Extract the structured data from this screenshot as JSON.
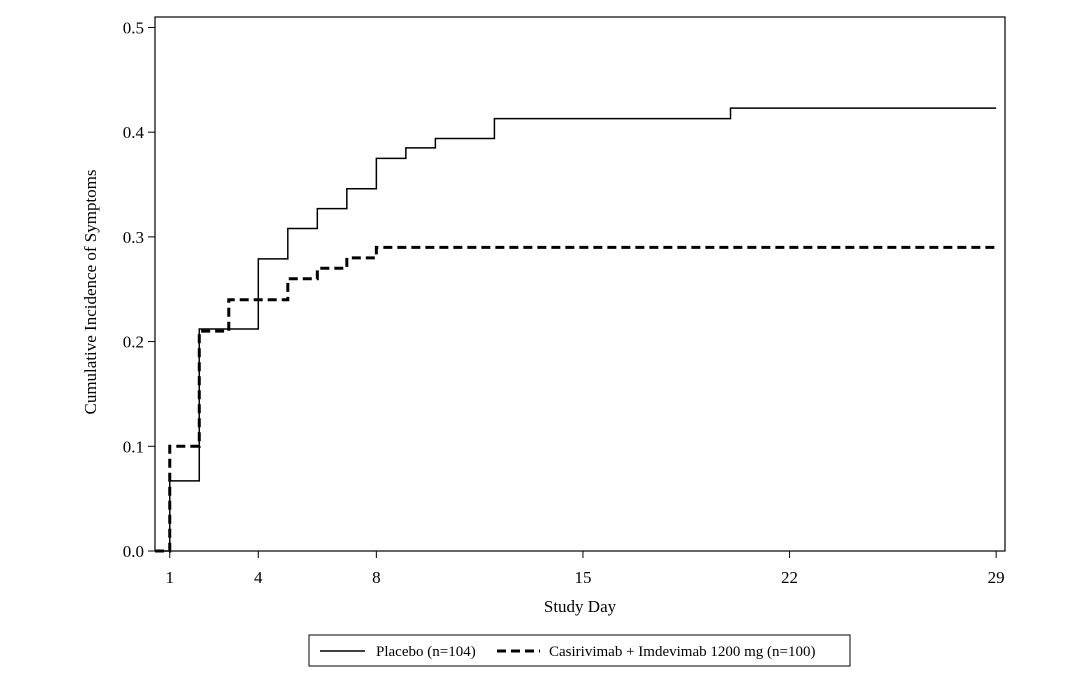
{
  "chart_data": {
    "type": "line",
    "chart_style": "step",
    "xlabel": "Study Day",
    "ylabel": "Cumulative Incidence of Symptoms",
    "xlim": [
      0.5,
      29.3
    ],
    "ylim": [
      0,
      0.51
    ],
    "x_ticks": [
      1,
      4,
      8,
      15,
      22,
      29
    ],
    "x_tick_labels": [
      "1",
      "4",
      "8",
      "15",
      "22",
      "29"
    ],
    "y_ticks": [
      0.0,
      0.1,
      0.2,
      0.3,
      0.4,
      0.5
    ],
    "y_tick_labels": [
      "0.0",
      "0.1",
      "0.2",
      "0.3",
      "0.4",
      "0.5"
    ],
    "grid": false,
    "legend_position": "bottom",
    "series": [
      {
        "name": "Placebo (n=104)",
        "line_style": "solid",
        "color": "#000000",
        "x": [
          0.5,
          1,
          2,
          4,
          5,
          6,
          7,
          8,
          9,
          10,
          12,
          20,
          29
        ],
        "y": [
          0,
          0.067,
          0.212,
          0.279,
          0.308,
          0.327,
          0.346,
          0.375,
          0.385,
          0.394,
          0.413,
          0.423,
          0.423
        ]
      },
      {
        "name": "Casirivimab + Imdevimab 1200 mg (n=100)",
        "line_style": "dashed",
        "color": "#000000",
        "x": [
          0.5,
          1,
          2,
          3,
          5,
          6,
          7,
          8,
          29
        ],
        "y": [
          0,
          0.1,
          0.21,
          0.24,
          0.26,
          0.27,
          0.28,
          0.29,
          0.29
        ]
      }
    ]
  }
}
